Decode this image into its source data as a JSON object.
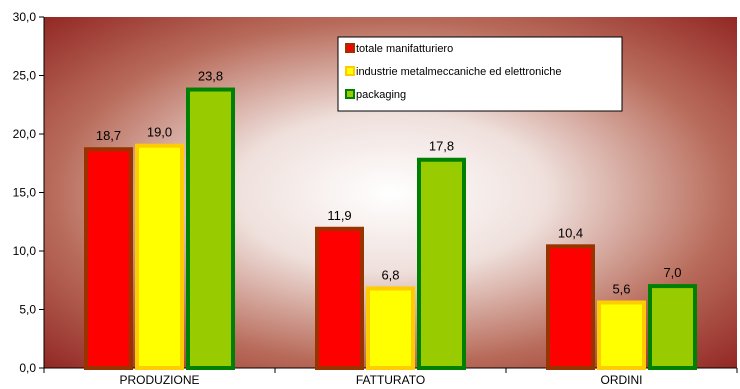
{
  "chart_data": {
    "type": "bar",
    "title": "",
    "xlabel": "",
    "ylabel": "",
    "ylim": [
      0,
      30
    ],
    "ytick_step": 5,
    "ytick_format": "0.0",
    "decimal_separator": ",",
    "categories": [
      "PRODUZIONE",
      "FATTURATO",
      "ORDINI"
    ],
    "series": [
      {
        "name": "totale manifatturiero",
        "values": [
          18.7,
          11.9,
          10.4
        ],
        "fill": "#ff0000",
        "border": "#993300"
      },
      {
        "name": "industrie metalmeccaniche ed elettroniche",
        "values": [
          19.0,
          6.8,
          5.6
        ],
        "fill": "#ffff00",
        "border": "#ffcc00"
      },
      {
        "name": "packaging",
        "values": [
          23.8,
          17.8,
          7.0
        ],
        "fill": "#99cc00",
        "border": "#008000"
      }
    ],
    "legend": {
      "position": "top-right"
    },
    "grid": false,
    "background": {
      "style": "radial-gradient",
      "center": "#ffffff",
      "edge": "#8b1a1a"
    }
  }
}
